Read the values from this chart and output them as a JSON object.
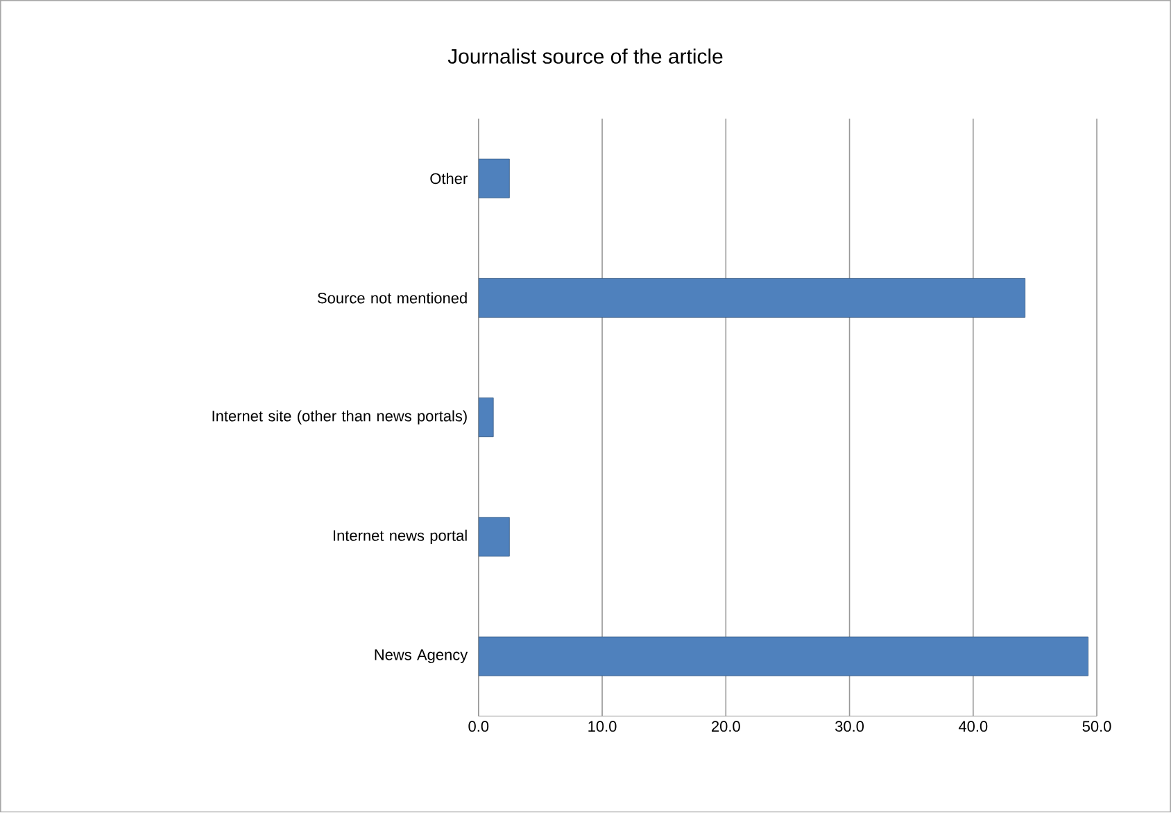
{
  "chart_data": {
    "type": "bar",
    "orientation": "horizontal",
    "title": "Journalist source of the article",
    "categories": [
      "Other",
      "Source not mentioned",
      "Internet site (other than news portals)",
      "Internet news portal",
      "News Agency"
    ],
    "values": [
      2.5,
      44.2,
      1.2,
      2.5,
      49.3
    ],
    "color": "#4f81bd",
    "xlim": [
      0,
      50
    ],
    "xticks": [
      {
        "value": 0,
        "label": "0.0"
      },
      {
        "value": 10,
        "label": "10.0"
      },
      {
        "value": 20,
        "label": "20.0"
      },
      {
        "value": 30,
        "label": "30.0"
      },
      {
        "value": 40,
        "label": "40.0"
      },
      {
        "value": 50,
        "label": "50.0"
      }
    ],
    "grid": "x"
  }
}
